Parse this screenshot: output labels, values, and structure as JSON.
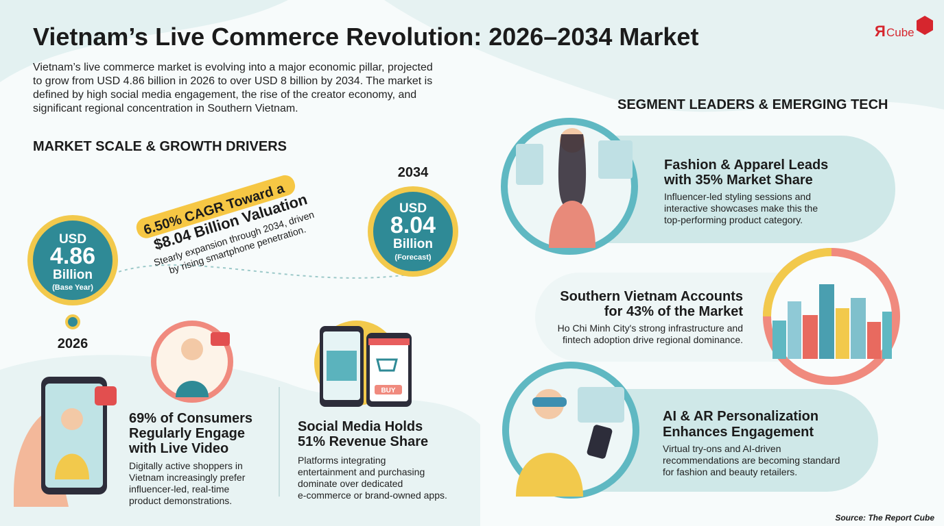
{
  "header": {
    "title": "Vietnam’s Live Commerce Revolution: 2026–2034 Market",
    "intro_lines": [
      "Vietnam’s live commerce market is evolving into a major economic pillar, projected",
      "to grow from USD 4.86 billion in 2026 to over USD 8 billion by 2034. The market is",
      "defined by high social media engagement, the rise of the creator economy, and",
      "significant regional concentration in Southern Vietnam."
    ],
    "logo": {
      "mark": "Я",
      "text": "Cube"
    }
  },
  "market_scale": {
    "heading": "MARKET SCALE & GROWTH DRIVERS",
    "start": {
      "year": "2026",
      "currency": "USD",
      "amount": "4.86",
      "unit": "Billion",
      "note": "(Base Year)"
    },
    "end": {
      "year": "2034",
      "currency": "USD",
      "amount": "8.04",
      "unit": "Billion",
      "note": "(Forecast)"
    },
    "cagr": {
      "headline_lines": [
        "6.50% CAGR Toward a",
        "$8.04 Billion Valuation"
      ],
      "text_lines": [
        "Stearly expansion through 2034, driven",
        "by rising smartphone penetration."
      ]
    },
    "cards": [
      {
        "title_lines": [
          "69% of Consumers",
          "Regularly Engage",
          "with Live Video"
        ],
        "body_lines": [
          "Digitally active shoppers in",
          "Vietnam increasingly prefer",
          "influencer-led, real-time",
          "product demonstrations."
        ]
      },
      {
        "title_lines": [
          "Social Media Holds",
          "51% Revenue Share"
        ],
        "body_lines": [
          "Platforms integrating",
          "entertainment and purchasing",
          "dominate over dedicated",
          "e-commerce or brand-owned apps."
        ],
        "button": "BUY"
      }
    ]
  },
  "segments": {
    "heading": "SEGMENT LEADERS & EMERGING TECH",
    "items": [
      {
        "title_lines": [
          "Fashion & Apparel Leads",
          "with 35% Market Share"
        ],
        "body_lines": [
          "Influencer-led styling sessions and",
          "interactive showcases make this the",
          "top-performing product category."
        ]
      },
      {
        "title_lines": [
          "Southern Vietnam Accounts",
          "for 43% of the Market"
        ],
        "body_lines": [
          "Ho Chi Minh City's strong infrastructure and",
          "fintech adoption drive regional dominance."
        ]
      },
      {
        "title_lines": [
          "AI & AR Personalization",
          "Enhances Engagement"
        ],
        "body_lines": [
          "Virtual try-ons and AI-driven",
          "recommendations are becoming standard",
          "for fashion and beauty retailers."
        ]
      }
    ]
  },
  "source": "Source: The Report Cube"
}
